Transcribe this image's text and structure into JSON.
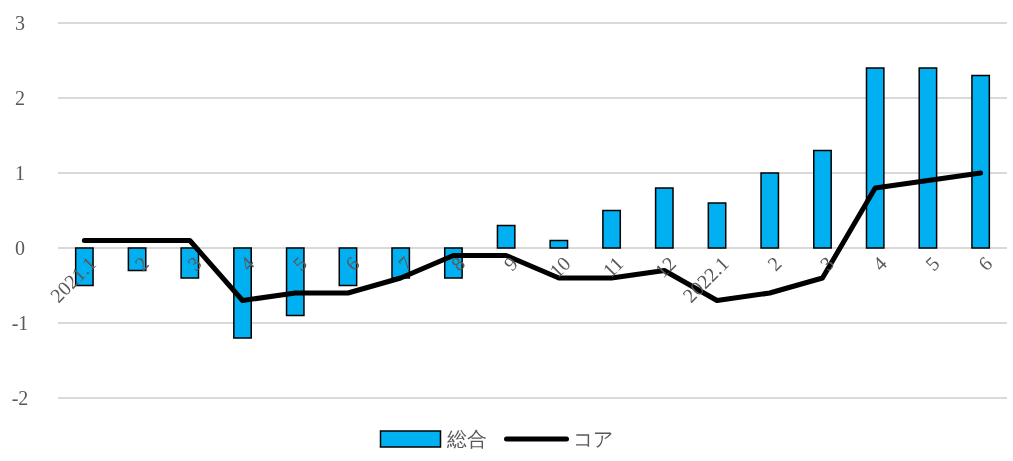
{
  "chart_data": {
    "type": "bar",
    "categories": [
      "2021.1",
      "2",
      "3",
      "4",
      "5",
      "6",
      "7",
      "8",
      "9",
      "10",
      "11",
      "12",
      "2022.1",
      "2",
      "3",
      "4",
      "5",
      "6"
    ],
    "series": [
      {
        "name": "総合",
        "color": "#00b0f0",
        "values": [
          -0.5,
          -0.3,
          -0.4,
          -1.2,
          -0.9,
          -0.5,
          -0.4,
          -0.4,
          0.3,
          0.1,
          0.5,
          0.8,
          0.6,
          1.0,
          1.3,
          2.4,
          2.4,
          2.3
        ]
      },
      {
        "name": "コア",
        "type": "line",
        "color": "#000000",
        "values": [
          0.1,
          0.1,
          0.1,
          -0.7,
          -0.6,
          -0.6,
          -0.4,
          -0.1,
          -0.1,
          -0.4,
          -0.4,
          -0.3,
          -0.7,
          -0.6,
          -0.4,
          0.8,
          0.9,
          1.0
        ]
      }
    ],
    "ylim": [
      -2,
      3
    ],
    "yticks": [
      -2,
      -1,
      0,
      1,
      2,
      3
    ],
    "grid": "y",
    "legend": "bottom",
    "marker": "none",
    "line_style": "solid"
  }
}
